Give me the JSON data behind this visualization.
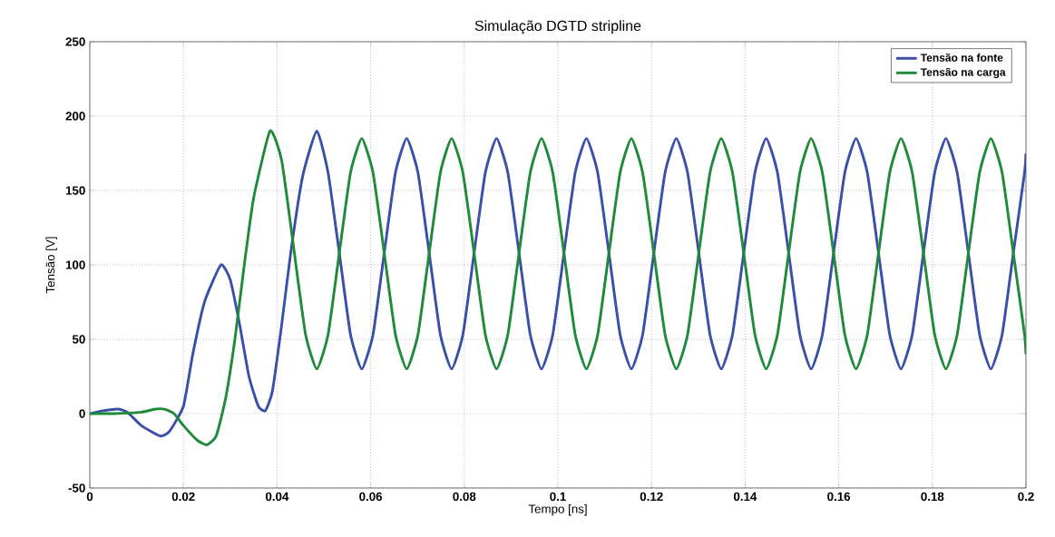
{
  "chart_data": {
    "type": "line",
    "title": "Simulação DGTD stripline",
    "xlabel": "Tempo [ns]",
    "ylabel": "Tensão [V]",
    "xlim": [
      0,
      0.2
    ],
    "ylim": [
      -50,
      250
    ],
    "xticks": [
      0,
      0.02,
      0.04,
      0.06,
      0.08,
      0.1,
      0.12,
      0.14,
      0.16,
      0.18,
      0.2
    ],
    "yticks": [
      -50,
      0,
      50,
      100,
      150,
      200,
      250
    ],
    "grid": true,
    "legend": "top right",
    "marker": "none",
    "line_style": "solid",
    "series": [
      {
        "name": "Tensão na fonte",
        "color": "#3a4fa8",
        "x": [
          0,
          0.003,
          0.006,
          0.008,
          0.011,
          0.015,
          0.017,
          0.02,
          0.022,
          0.0245,
          0.028,
          0.03,
          0.032,
          0.034,
          0.036,
          0.0375,
          0.039,
          0.041,
          0.043,
          0.0455,
          0.0485,
          0.0509,
          0.0533,
          0.0557,
          0.0581,
          0.0605,
          0.0629,
          0.0653,
          0.0677,
          0.0701,
          0.0725,
          0.0749,
          0.0773,
          0.0797,
          0.0821,
          0.0845,
          0.0869,
          0.0893,
          0.0917,
          0.0941,
          0.0965,
          0.0989,
          0.1013,
          0.1037,
          0.1061,
          0.1085,
          0.1109,
          0.1133,
          0.1157,
          0.1181,
          0.1205,
          0.1229,
          0.1253,
          0.1277,
          0.1301,
          0.1325,
          0.1349,
          0.1373,
          0.1397,
          0.1421,
          0.1445,
          0.1469,
          0.1493,
          0.1517,
          0.1541,
          0.1565,
          0.1589,
          0.1613,
          0.1637,
          0.1661,
          0.1685,
          0.1709,
          0.1733,
          0.1757,
          0.1781,
          0.1805,
          0.1829,
          0.1853,
          0.1877,
          0.1901,
          0.1925,
          0.1949,
          0.1973,
          0.1997,
          0.2
        ],
        "values": [
          0,
          2,
          3,
          1,
          -8,
          -15,
          -12,
          5,
          40,
          75,
          100,
          90,
          60,
          25,
          5,
          2,
          15,
          60,
          110,
          160,
          190,
          162,
          108,
          53,
          30,
          53,
          108,
          162,
          185,
          162,
          108,
          53,
          30,
          53,
          108,
          162,
          185,
          162,
          108,
          53,
          30,
          53,
          108,
          162,
          185,
          162,
          108,
          53,
          30,
          53,
          108,
          162,
          185,
          162,
          108,
          53,
          30,
          53,
          108,
          162,
          185,
          162,
          108,
          53,
          30,
          53,
          108,
          162,
          185,
          162,
          108,
          53,
          30,
          53,
          108,
          162,
          185,
          162,
          108,
          53,
          30,
          53,
          108,
          162,
          175
        ]
      },
      {
        "name": "Tensão na carga",
        "color": "#1f8a3a",
        "x": [
          0,
          0.005,
          0.011,
          0.014,
          0.016,
          0.018,
          0.02,
          0.023,
          0.025,
          0.027,
          0.029,
          0.031,
          0.033,
          0.035,
          0.0385,
          0.041,
          0.0437,
          0.0461,
          0.0485,
          0.0509,
          0.0533,
          0.0557,
          0.0581,
          0.0605,
          0.0629,
          0.0653,
          0.0677,
          0.0701,
          0.0725,
          0.0749,
          0.0773,
          0.0797,
          0.0821,
          0.0845,
          0.0869,
          0.0893,
          0.0917,
          0.0941,
          0.0965,
          0.0989,
          0.1013,
          0.1037,
          0.1061,
          0.1085,
          0.1109,
          0.1133,
          0.1157,
          0.1181,
          0.1205,
          0.1229,
          0.1253,
          0.1277,
          0.1301,
          0.1325,
          0.1349,
          0.1373,
          0.1397,
          0.1421,
          0.1445,
          0.1469,
          0.1493,
          0.1517,
          0.1541,
          0.1565,
          0.1589,
          0.1613,
          0.1637,
          0.1661,
          0.1685,
          0.1709,
          0.1733,
          0.1757,
          0.1781,
          0.1805,
          0.1829,
          0.1853,
          0.1877,
          0.1901,
          0.1925,
          0.1949,
          0.1973,
          0.1997,
          0.2
        ],
        "values": [
          0,
          0,
          1,
          3,
          3,
          0,
          -8,
          -18,
          -21,
          -15,
          10,
          50,
          100,
          145,
          190,
          170,
          108,
          53,
          30,
          53,
          108,
          162,
          185,
          162,
          108,
          53,
          30,
          53,
          108,
          162,
          185,
          162,
          108,
          53,
          30,
          53,
          108,
          162,
          185,
          162,
          108,
          53,
          30,
          53,
          108,
          162,
          185,
          162,
          108,
          53,
          30,
          53,
          108,
          162,
          185,
          162,
          108,
          53,
          30,
          53,
          108,
          162,
          185,
          162,
          108,
          53,
          30,
          53,
          108,
          162,
          185,
          162,
          108,
          53,
          30,
          53,
          108,
          162,
          185,
          162,
          108,
          53,
          40
        ]
      }
    ]
  }
}
